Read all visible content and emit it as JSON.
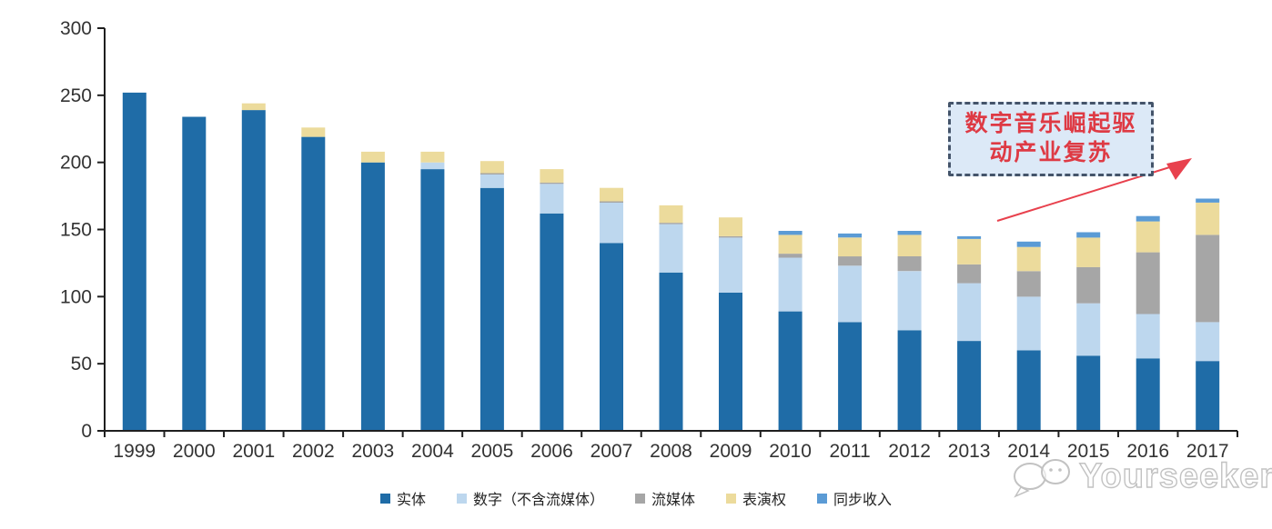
{
  "chart_data": {
    "type": "bar",
    "stacked": true,
    "title": "",
    "xlabel": "",
    "ylabel": "",
    "categories": [
      "1999",
      "2000",
      "2001",
      "2002",
      "2003",
      "2004",
      "2005",
      "2006",
      "2007",
      "2008",
      "2009",
      "2010",
      "2011",
      "2012",
      "2013",
      "2014",
      "2015",
      "2016",
      "2017"
    ],
    "series": [
      {
        "name": "实体",
        "color": "#1F6CA7",
        "values": [
          252,
          234,
          239,
          219,
          200,
          195,
          181,
          162,
          140,
          118,
          103,
          89,
          81,
          75,
          67,
          60,
          56,
          54,
          52
        ]
      },
      {
        "name": "数字（不含流媒体）",
        "color": "#BDD7EE",
        "values": [
          0,
          0,
          0,
          0,
          0,
          5,
          10,
          22,
          30,
          36,
          41,
          40,
          42,
          44,
          43,
          40,
          39,
          33,
          29
        ]
      },
      {
        "name": "流媒体",
        "color": "#A6A6A6",
        "values": [
          0,
          0,
          0,
          0,
          0,
          0,
          1,
          1,
          1,
          1,
          1,
          3,
          7,
          11,
          14,
          19,
          27,
          46,
          65
        ]
      },
      {
        "name": "表演权",
        "color": "#ECDB9C",
        "values": [
          0,
          0,
          5,
          7,
          8,
          8,
          9,
          10,
          10,
          13,
          14,
          14,
          14,
          16,
          19,
          18,
          22,
          23,
          24
        ]
      },
      {
        "name": "同步收入",
        "color": "#5B9BD5",
        "values": [
          0,
          0,
          0,
          0,
          0,
          0,
          0,
          0,
          0,
          0,
          0,
          3,
          3,
          3,
          2,
          4,
          4,
          4,
          3
        ]
      }
    ],
    "ylim": [
      0,
      300
    ],
    "yticks": [
      0,
      50,
      100,
      150,
      200,
      250,
      300
    ],
    "grid": false,
    "legend_position": "bottom"
  },
  "annotation": {
    "line1": "数字音乐崛起驱",
    "line2": "动产业复苏",
    "full_text": "数字音乐崛起驱动产业复苏"
  },
  "watermark": {
    "text": "Yourseeker"
  },
  "colors": {
    "axis": "#1f1f1f",
    "tick_label": "#333333",
    "annotation_text": "#DE3A44",
    "annotation_border": "#44546A",
    "annotation_fill": "#DCE9F7",
    "arrow": "#E8414D",
    "watermark": "#c2c2c2"
  }
}
